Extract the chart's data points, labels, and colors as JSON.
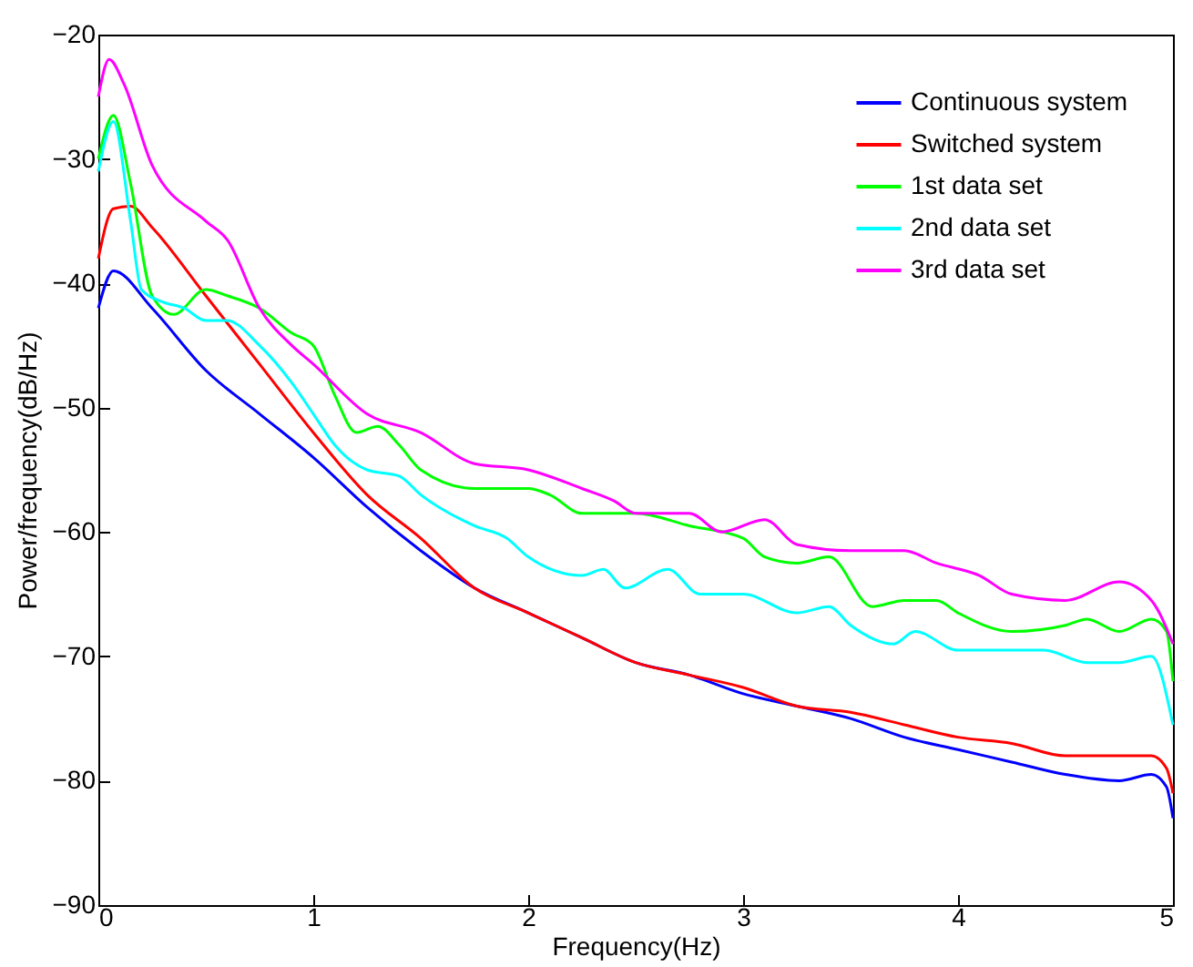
{
  "chart_data": {
    "type": "line",
    "xlabel": "Frequency(Hz)",
    "ylabel": "Power/frequency(dB/Hz)",
    "xlim": [
      0,
      5
    ],
    "xticks": [
      0,
      1,
      2,
      3,
      4,
      5
    ],
    "ylim": [
      -90,
      -20
    ],
    "yticks": [
      -90,
      -80,
      -70,
      -60,
      -50,
      -40,
      -30,
      -20
    ],
    "grid": false,
    "legend": "top right",
    "line_style": "solid",
    "marker": "none",
    "series": [
      {
        "name": "Continuous system",
        "color": "#0000ff",
        "x": [
          0,
          0.07,
          0.25,
          0.5,
          0.75,
          1,
          1.25,
          1.5,
          1.75,
          2,
          2.25,
          2.5,
          2.75,
          3,
          3.25,
          3.5,
          3.75,
          4,
          4.25,
          4.5,
          4.75,
          4.9,
          4.97,
          5
        ],
        "values": [
          -42,
          -39,
          -42,
          -47,
          -50.5,
          -54,
          -58,
          -61.5,
          -64.5,
          -66.5,
          -68.5,
          -70.5,
          -71.5,
          -73,
          -74,
          -75,
          -76.5,
          -77.5,
          -78.5,
          -79.5,
          -80,
          -79.5,
          -80.5,
          -83
        ]
      },
      {
        "name": "Switched system",
        "color": "#ff0000",
        "x": [
          0,
          0.07,
          0.15,
          0.25,
          0.5,
          0.75,
          1,
          1.25,
          1.5,
          1.75,
          2,
          2.25,
          2.5,
          2.75,
          3,
          3.25,
          3.5,
          3.75,
          4,
          4.25,
          4.5,
          4.75,
          4.9,
          4.97,
          5
        ],
        "values": [
          -38,
          -34,
          -33.8,
          -35.5,
          -41,
          -46.5,
          -52,
          -57,
          -60.5,
          -64.5,
          -66.5,
          -68.5,
          -70.5,
          -71.5,
          -72.5,
          -74,
          -74.5,
          -75.5,
          -76.5,
          -77,
          -78,
          -78,
          -78,
          -79,
          -81
        ]
      },
      {
        "name": "1st data set",
        "color": "#00ff00",
        "x": [
          0,
          0.07,
          0.15,
          0.25,
          0.35,
          0.5,
          0.6,
          0.75,
          0.9,
          1,
          1.1,
          1.2,
          1.3,
          1.4,
          1.5,
          1.75,
          2,
          2.1,
          2.25,
          2.5,
          2.75,
          3,
          3.1,
          3.25,
          3.4,
          3.6,
          3.75,
          3.9,
          4,
          4.25,
          4.5,
          4.6,
          4.75,
          4.9,
          4.97,
          5
        ],
        "values": [
          -30,
          -26.5,
          -32,
          -41,
          -42.5,
          -40.5,
          -41,
          -42,
          -44,
          -45,
          -49,
          -52,
          -51.5,
          -53,
          -55,
          -56.5,
          -56.5,
          -57,
          -58.5,
          -58.5,
          -59.5,
          -60.5,
          -62,
          -62.5,
          -62,
          -66,
          -65.5,
          -65.5,
          -66.5,
          -68,
          -67.5,
          -67,
          -68,
          -67,
          -68,
          -72
        ]
      },
      {
        "name": "2nd data set",
        "color": "#00ffff",
        "x": [
          0,
          0.07,
          0.15,
          0.2,
          0.3,
          0.4,
          0.5,
          0.6,
          0.75,
          0.9,
          1,
          1.1,
          1.25,
          1.4,
          1.5,
          1.75,
          1.9,
          2,
          2.25,
          2.35,
          2.45,
          2.65,
          2.8,
          3,
          3.25,
          3.4,
          3.5,
          3.7,
          3.8,
          4,
          4.25,
          4.4,
          4.6,
          4.75,
          4.9,
          5
        ],
        "values": [
          -31,
          -27,
          -35,
          -40.5,
          -41.5,
          -42,
          -43,
          -43,
          -45,
          -48,
          -50.5,
          -53,
          -55,
          -55.5,
          -57,
          -59.5,
          -60.5,
          -62,
          -63.5,
          -63,
          -64.5,
          -63,
          -65,
          -65,
          -66.5,
          -66,
          -67.5,
          -69,
          -68,
          -69.5,
          -69.5,
          -69.5,
          -70.5,
          -70.5,
          -70,
          -75.5
        ]
      },
      {
        "name": "3rd data set",
        "color": "#ff00ff",
        "x": [
          0,
          0.05,
          0.12,
          0.25,
          0.5,
          0.6,
          0.75,
          0.9,
          1,
          1.25,
          1.5,
          1.75,
          2,
          2.25,
          2.4,
          2.5,
          2.75,
          2.9,
          3.1,
          3.25,
          3.5,
          3.75,
          3.9,
          4.1,
          4.25,
          4.5,
          4.75,
          4.9,
          5
        ],
        "values": [
          -25,
          -22,
          -24,
          -30.5,
          -35,
          -36.5,
          -42,
          -45,
          -46.5,
          -50.5,
          -52,
          -54.5,
          -55,
          -56.5,
          -57.5,
          -58.5,
          -58.5,
          -60,
          -59,
          -61,
          -61.5,
          -61.5,
          -62.5,
          -63.5,
          -65,
          -65.5,
          -64,
          -65.5,
          -69
        ]
      }
    ]
  }
}
